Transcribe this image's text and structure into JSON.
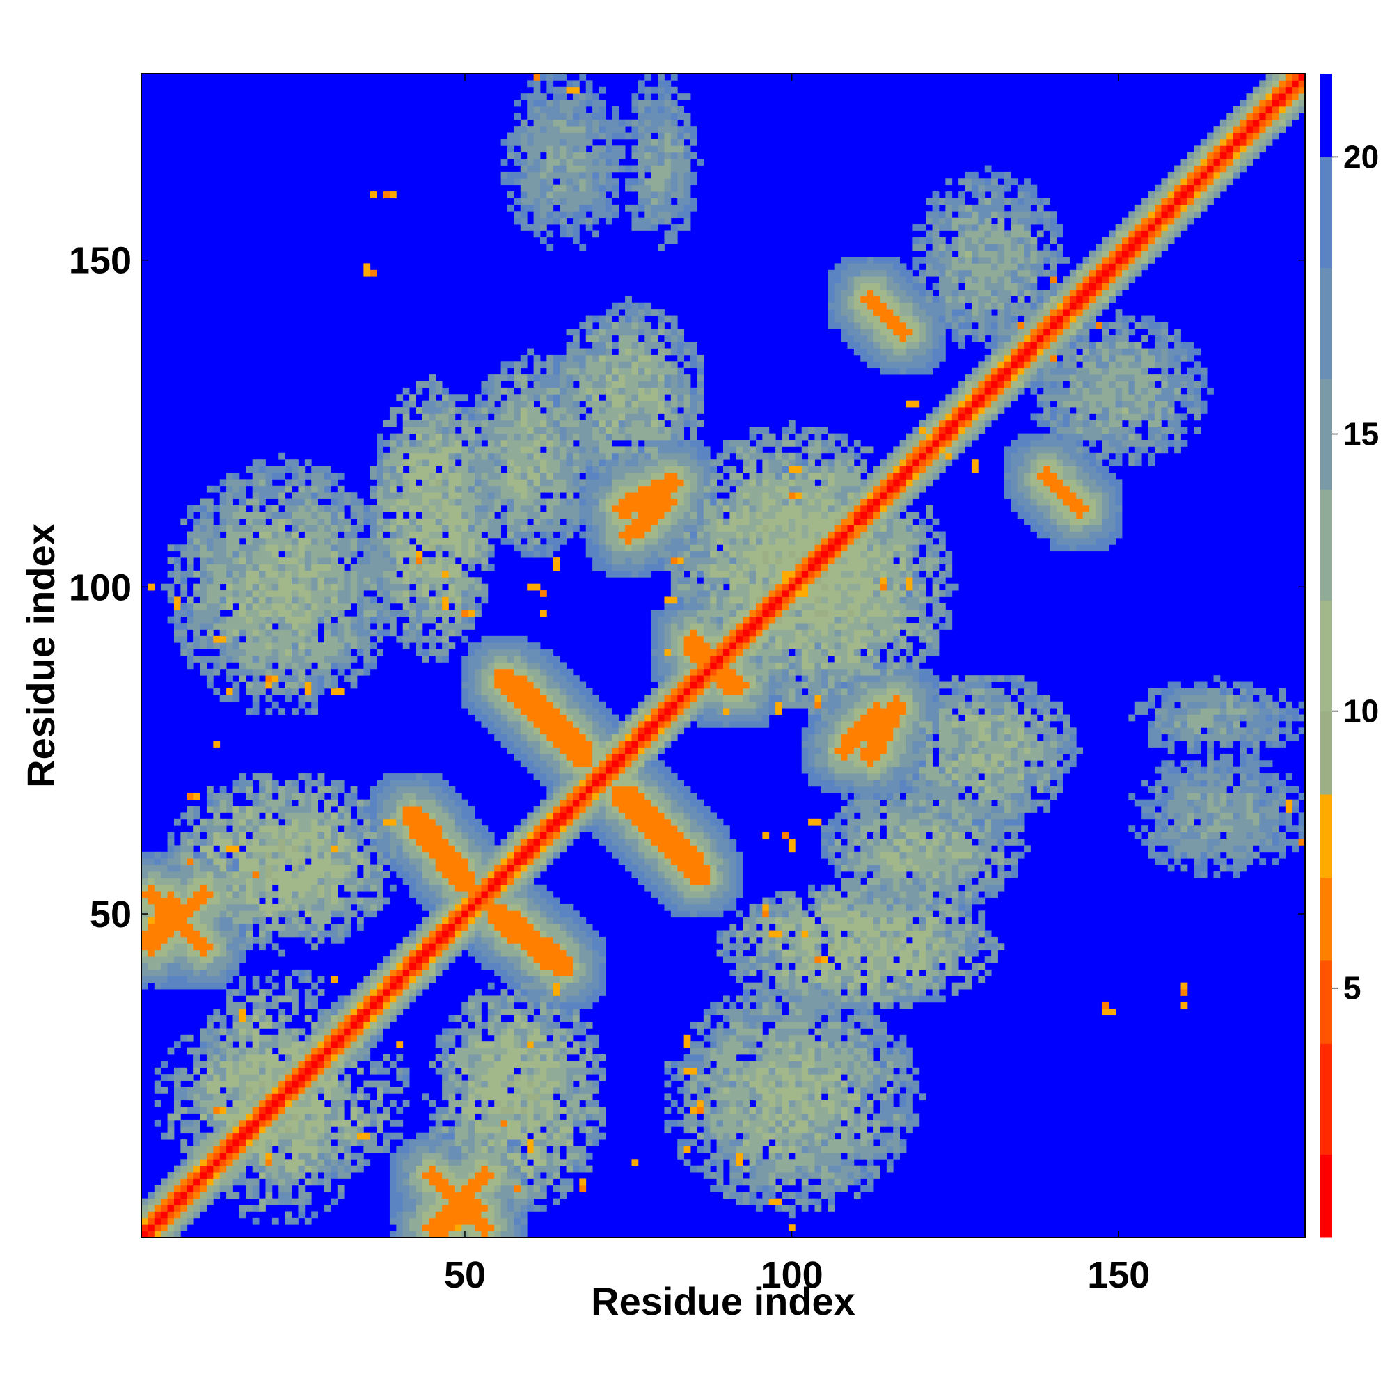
{
  "chart_data": {
    "type": "heatmap",
    "title": "",
    "xlabel": "Residue index",
    "ylabel": "Residue index",
    "n_residues": 178,
    "xlim": [
      1,
      178
    ],
    "ylim": [
      1,
      178
    ],
    "x_ticks": [
      {
        "value": 50,
        "label": "50"
      },
      {
        "value": 100,
        "label": "100"
      },
      {
        "value": 150,
        "label": "150"
      }
    ],
    "y_ticks": [
      {
        "value": 50,
        "label": "50"
      },
      {
        "value": 100,
        "label": "100"
      },
      {
        "value": 150,
        "label": "150"
      }
    ],
    "colorbar": {
      "range": [
        0.5,
        21.5
      ],
      "ticks": [
        {
          "value": 5,
          "label": "5"
        },
        {
          "value": 10,
          "label": "10"
        },
        {
          "value": 15,
          "label": "15"
        },
        {
          "value": 20,
          "label": "20"
        }
      ],
      "levels": [
        {
          "from": 0.5,
          "to": 2,
          "color": "#ff0000"
        },
        {
          "from": 2,
          "to": 4,
          "color": "#ff2a00"
        },
        {
          "from": 4,
          "to": 5.5,
          "color": "#ff5500"
        },
        {
          "from": 5.5,
          "to": 7,
          "color": "#ff8000"
        },
        {
          "from": 7,
          "to": 8.5,
          "color": "#ffaa00"
        },
        {
          "from": 8.5,
          "to": 10,
          "color": "#9db085"
        },
        {
          "from": 10,
          "to": 12,
          "color": "#a3b88a"
        },
        {
          "from": 12,
          "to": 14,
          "color": "#90ab98"
        },
        {
          "from": 14,
          "to": 16,
          "color": "#7b9aa8"
        },
        {
          "from": 16,
          "to": 18,
          "color": "#6a8fb6"
        },
        {
          "from": 18,
          "to": 20,
          "color": "#5b85c2"
        },
        {
          "from": 20,
          "to": 21.5,
          "color": "#0000ff"
        }
      ]
    },
    "background_value": 21,
    "diagonal": {
      "from": 1,
      "to": 178,
      "core_value": 1,
      "band": [
        4.5,
        7,
        10,
        13,
        16
      ]
    },
    "strands": [
      {
        "p1": [
          2,
          53
        ],
        "p2": [
          10,
          45
        ],
        "value": 6.5,
        "width": 1.3
      },
      {
        "p1": [
          45,
          2
        ],
        "p2": [
          53,
          10
        ],
        "value": 6.5,
        "width": 1.3
      },
      {
        "p1": [
          42,
          65
        ],
        "p2": [
          50,
          55
        ],
        "value": 6.5,
        "width": 1.5
      },
      {
        "p1": [
          65,
          42
        ],
        "p2": [
          55,
          50
        ],
        "value": 6.5,
        "width": 1.5
      },
      {
        "p1": [
          56,
          86
        ],
        "p2": [
          68,
          74
        ],
        "value": 6.5,
        "width": 1.5
      },
      {
        "p1": [
          86,
          56
        ],
        "p2": [
          74,
          68
        ],
        "value": 6.5,
        "width": 1.5
      },
      {
        "p1": [
          75,
          68
        ],
        "p2": [
          85,
          58
        ],
        "value": 6.5,
        "width": 1.5
      },
      {
        "p1": [
          68,
          75
        ],
        "p2": [
          58,
          85
        ],
        "value": 6.5,
        "width": 1.5
      },
      {
        "p1": [
          74,
          112
        ],
        "p2": [
          82,
          116
        ],
        "value": 6.5,
        "width": 1.3
      },
      {
        "p1": [
          112,
          74
        ],
        "p2": [
          116,
          82
        ],
        "value": 6.5,
        "width": 1.3
      },
      {
        "p1": [
          46,
          2
        ],
        "p2": [
          52,
          5
        ],
        "value": 6.5,
        "width": 1.2
      },
      {
        "p1": [
          112,
          144
        ],
        "p2": [
          117,
          139
        ],
        "value": 6.5,
        "width": 1.2
      },
      {
        "p1": [
          139,
          117
        ],
        "p2": [
          144,
          112
        ],
        "value": 6.5,
        "width": 1.2
      },
      {
        "p1": [
          85,
          90
        ],
        "p2": [
          92,
          85
        ],
        "value": 6.5,
        "width": 1.2
      },
      {
        "p1": [
          108,
          75
        ],
        "p2": [
          113,
          81
        ],
        "value": 6.5,
        "width": 1.2
      }
    ],
    "contact_blobs": [
      {
        "cx": 22,
        "cy": 22,
        "rx": 20,
        "ry": 14,
        "value": 12
      },
      {
        "cx": 22,
        "cy": 58,
        "rx": 18,
        "ry": 14,
        "value": 12
      },
      {
        "cx": 58,
        "cy": 22,
        "rx": 14,
        "ry": 18,
        "value": 12
      },
      {
        "cx": 22,
        "cy": 100,
        "rx": 18,
        "ry": 20,
        "value": 13
      },
      {
        "cx": 100,
        "cy": 22,
        "rx": 20,
        "ry": 18,
        "value": 13
      },
      {
        "cx": 45,
        "cy": 110,
        "rx": 10,
        "ry": 22,
        "value": 12
      },
      {
        "cx": 110,
        "cy": 45,
        "rx": 22,
        "ry": 10,
        "value": 12
      },
      {
        "cx": 75,
        "cy": 130,
        "rx": 12,
        "ry": 14,
        "value": 13
      },
      {
        "cx": 130,
        "cy": 75,
        "rx": 14,
        "ry": 12,
        "value": 13
      },
      {
        "cx": 105,
        "cy": 100,
        "rx": 20,
        "ry": 20,
        "value": 12
      },
      {
        "cx": 100,
        "cy": 105,
        "rx": 20,
        "ry": 20,
        "value": 12
      },
      {
        "cx": 120,
        "cy": 60,
        "rx": 16,
        "ry": 10,
        "value": 13
      },
      {
        "cx": 60,
        "cy": 120,
        "rx": 10,
        "ry": 16,
        "value": 13
      },
      {
        "cx": 150,
        "cy": 130,
        "rx": 14,
        "ry": 12,
        "value": 14
      },
      {
        "cx": 130,
        "cy": 150,
        "rx": 12,
        "ry": 14,
        "value": 14
      },
      {
        "cx": 65,
        "cy": 165,
        "rx": 10,
        "ry": 14,
        "value": 15
      },
      {
        "cx": 165,
        "cy": 65,
        "rx": 14,
        "ry": 10,
        "value": 15
      },
      {
        "cx": 165,
        "cy": 80,
        "rx": 14,
        "ry": 6,
        "value": 15
      },
      {
        "cx": 80,
        "cy": 165,
        "rx": 6,
        "ry": 14,
        "value": 15
      }
    ],
    "hotspots": [
      {
        "x": 6,
        "y": 97
      },
      {
        "x": 14,
        "y": 84
      },
      {
        "x": 20,
        "y": 85
      },
      {
        "x": 26,
        "y": 84
      },
      {
        "x": 43,
        "y": 104
      },
      {
        "x": 47,
        "y": 97
      },
      {
        "x": 62,
        "y": 99
      },
      {
        "x": 64,
        "y": 103
      },
      {
        "x": 78,
        "y": 110
      },
      {
        "x": 80,
        "y": 113
      },
      {
        "x": 96,
        "y": 98
      },
      {
        "x": 102,
        "y": 99
      },
      {
        "x": 114,
        "y": 100
      },
      {
        "x": 118,
        "y": 100
      },
      {
        "x": 86,
        "y": 84
      },
      {
        "x": 90,
        "y": 81
      },
      {
        "x": 98,
        "y": 81
      },
      {
        "x": 104,
        "y": 82
      },
      {
        "x": 96,
        "y": 62
      },
      {
        "x": 100,
        "y": 60
      },
      {
        "x": 96,
        "y": 50
      },
      {
        "x": 102,
        "y": 47
      },
      {
        "x": 28,
        "y": 29
      },
      {
        "x": 20,
        "y": 12
      },
      {
        "x": 40,
        "y": 30
      },
      {
        "x": 56,
        "y": 18
      },
      {
        "x": 60,
        "y": 14
      },
      {
        "x": 68,
        "y": 8
      },
      {
        "x": 86,
        "y": 20
      },
      {
        "x": 84,
        "y": 30
      },
      {
        "x": 92,
        "y": 12
      },
      {
        "x": 100,
        "y": 2
      },
      {
        "x": 124,
        "y": 120
      },
      {
        "x": 128,
        "y": 118
      },
      {
        "x": 135,
        "y": 140
      },
      {
        "x": 140,
        "y": 147
      },
      {
        "x": 36,
        "y": 160
      },
      {
        "x": 35,
        "y": 148
      },
      {
        "x": 61,
        "y": 178
      },
      {
        "x": 148,
        "y": 36
      },
      {
        "x": 160,
        "y": 38
      },
      {
        "x": 176,
        "y": 66
      },
      {
        "x": 12,
        "y": 76
      },
      {
        "x": 8,
        "y": 58
      },
      {
        "x": 30,
        "y": 60
      },
      {
        "x": 38,
        "y": 64
      },
      {
        "x": 64,
        "y": 38
      },
      {
        "x": 16,
        "y": 34
      }
    ],
    "seed": 7
  }
}
